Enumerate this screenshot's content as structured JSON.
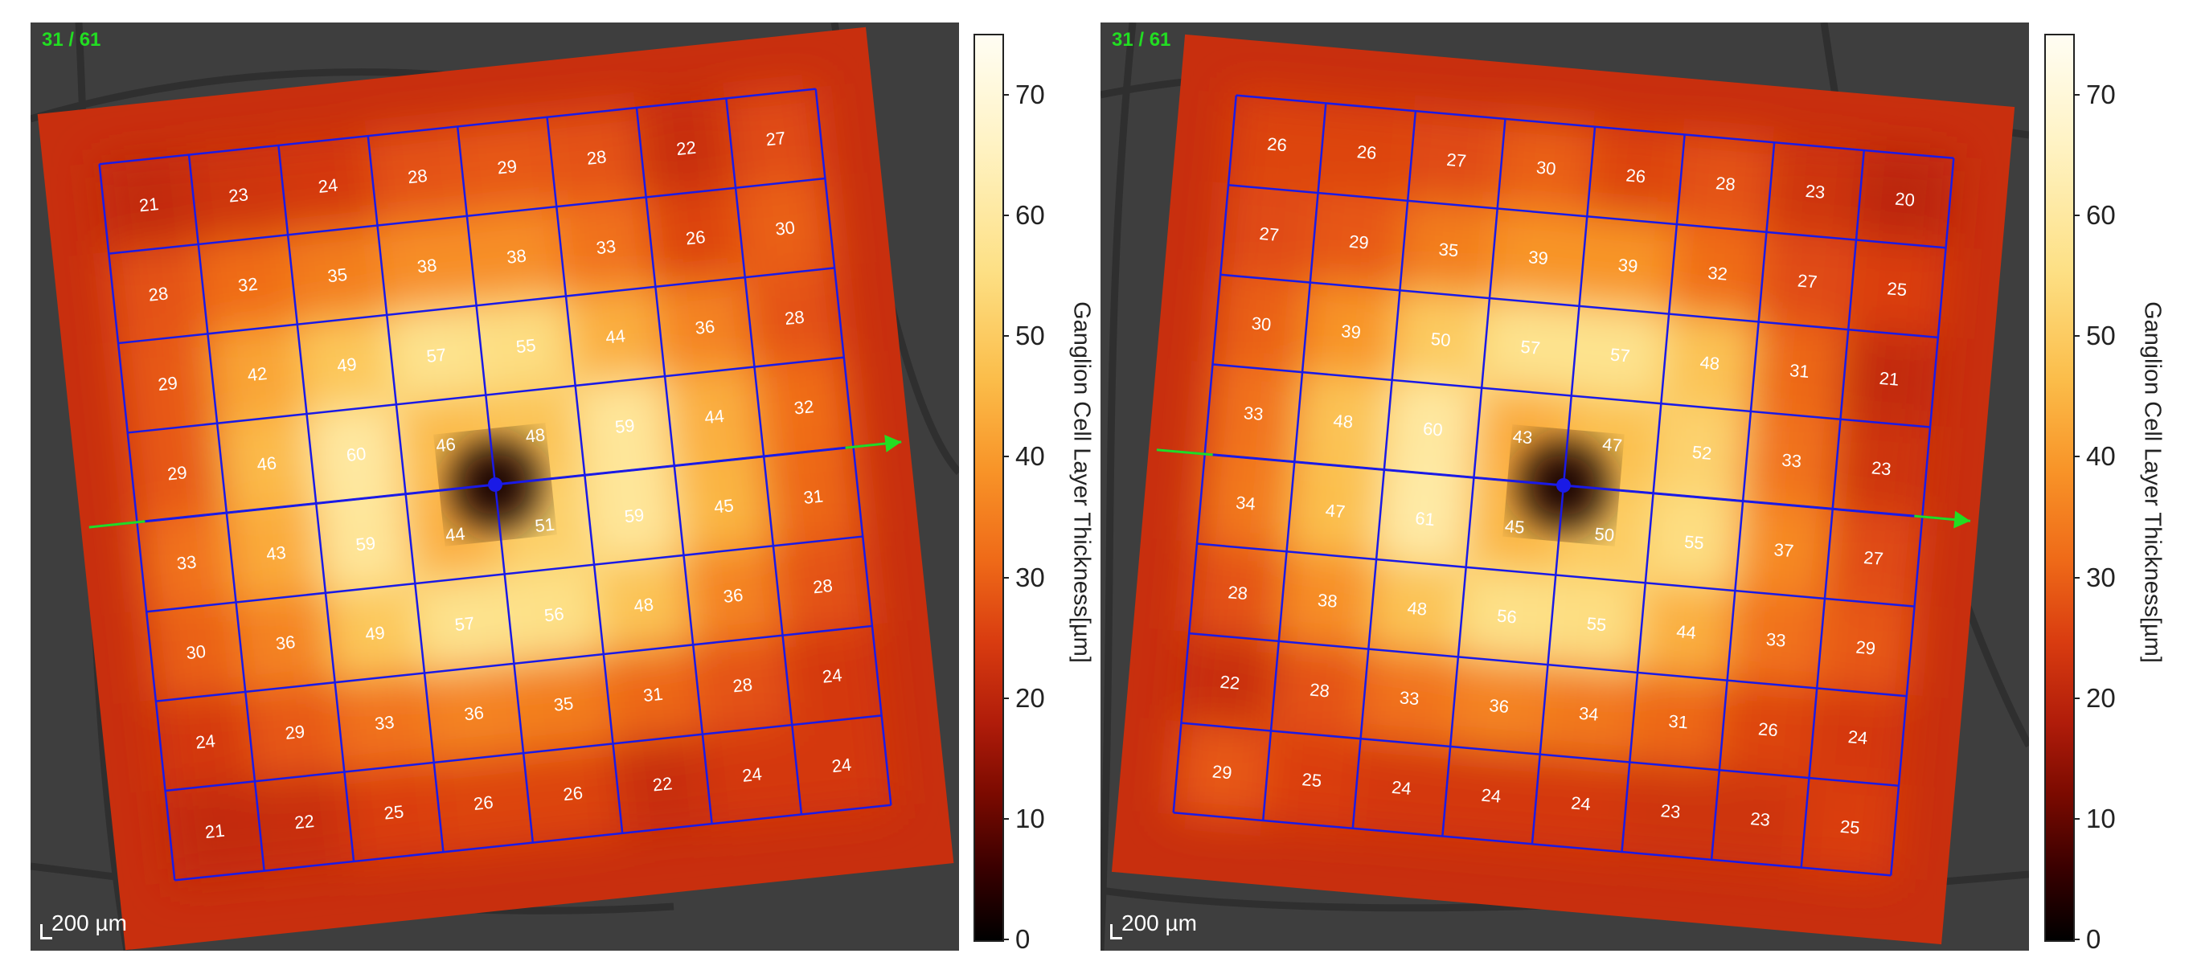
{
  "colorbar": {
    "title": "Ganglion Cell Layer Thickness[µm]",
    "ticks": [
      0,
      10,
      20,
      30,
      40,
      50,
      60,
      70
    ],
    "range": [
      0,
      75
    ],
    "colors": [
      "#000000",
      "#7a0a00",
      "#d93c10",
      "#f89428",
      "#fde085",
      "#fffdf3"
    ]
  },
  "chart_data": [
    {
      "type": "heatmap",
      "slice_label": "31 / 61",
      "scale_label": "200 µm",
      "colorbar_title": "Ganglion Cell Layer Thickness[µm]",
      "colorbar_range": [
        0,
        75
      ],
      "grid_rotation_deg": -6,
      "values": [
        [
          21,
          23,
          24,
          28,
          29,
          28,
          22,
          27
        ],
        [
          28,
          32,
          35,
          38,
          38,
          33,
          26,
          30
        ],
        [
          29,
          42,
          49,
          57,
          55,
          44,
          36,
          28
        ],
        [
          29,
          46,
          60,
          46,
          48,
          59,
          44,
          32
        ],
        [
          33,
          43,
          59,
          44,
          51,
          59,
          45,
          31
        ],
        [
          30,
          36,
          49,
          57,
          56,
          48,
          36,
          28
        ],
        [
          24,
          29,
          33,
          36,
          35,
          31,
          28,
          24
        ],
        [
          21,
          22,
          25,
          26,
          26,
          22,
          24,
          24
        ]
      ]
    },
    {
      "type": "heatmap",
      "slice_label": "31 / 61",
      "scale_label": "200 µm",
      "colorbar_title": "Ganglion Cell Layer Thickness[µm]",
      "colorbar_range": [
        0,
        75
      ],
      "grid_rotation_deg": 5,
      "values": [
        [
          26,
          26,
          27,
          30,
          26,
          28,
          23,
          20
        ],
        [
          27,
          29,
          35,
          39,
          39,
          32,
          27,
          25
        ],
        [
          30,
          39,
          50,
          57,
          57,
          48,
          31,
          21
        ],
        [
          33,
          48,
          60,
          43,
          47,
          52,
          33,
          23
        ],
        [
          34,
          47,
          61,
          45,
          50,
          55,
          37,
          27
        ],
        [
          28,
          38,
          48,
          56,
          55,
          44,
          33,
          29
        ],
        [
          22,
          28,
          33,
          36,
          34,
          31,
          26,
          24
        ],
        [
          29,
          25,
          24,
          24,
          24,
          23,
          23,
          25
        ]
      ]
    }
  ]
}
